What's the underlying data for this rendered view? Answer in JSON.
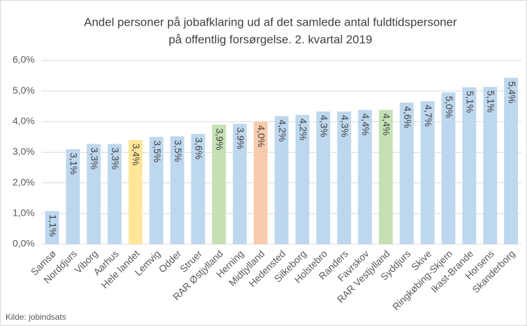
{
  "chart_data": {
    "type": "bar",
    "title": [
      "Andel personer på jobafklaring ud af det samlede antal fuldtidspersoner",
      "på offentlig forsørgelse. 2. kvartal 2019"
    ],
    "categories": [
      "Samsø",
      "Norddjurs",
      "Viborg",
      "Aarhus",
      "Hele landet",
      "Lemvig",
      "Odder",
      "Struer",
      "RAR Østjylland",
      "Herning",
      "Midtjylland",
      "Hedensted",
      "Silkeborg",
      "Holstebro",
      "Randers",
      "Favrskov",
      "RAR Vestjylland",
      "Syddjurs",
      "Skive",
      "Ringkøbing-Skjern",
      "Ikast-Brande",
      "Horsens",
      "Skanderborg"
    ],
    "values": [
      1.08,
      3.1,
      3.27,
      3.27,
      3.4,
      3.5,
      3.52,
      3.6,
      3.9,
      3.93,
      4.0,
      4.18,
      4.22,
      4.33,
      4.33,
      4.38,
      4.38,
      4.62,
      4.67,
      4.95,
      5.12,
      5.13,
      5.43
    ],
    "value_labels": [
      "1,1%",
      "3,1%",
      "3,3%",
      "3,3%",
      "3,4%",
      "3,5%",
      "3,5%",
      "3,6%",
      "3,9%",
      "3,9%",
      "4,0%",
      "4,2%",
      "4,2%",
      "4,3%",
      "4,3%",
      "4,4%",
      "4,4%",
      "4,6%",
      "4,7%",
      "5,0%",
      "5,1%",
      "5,1%",
      "5,4%"
    ],
    "colors": [
      "#bdd7ee",
      "#bdd7ee",
      "#bdd7ee",
      "#bdd7ee",
      "#ffe699",
      "#bdd7ee",
      "#bdd7ee",
      "#bdd7ee",
      "#c5e0b4",
      "#bdd7ee",
      "#f8cbad",
      "#bdd7ee",
      "#bdd7ee",
      "#bdd7ee",
      "#bdd7ee",
      "#bdd7ee",
      "#c5e0b4",
      "#bdd7ee",
      "#bdd7ee",
      "#bdd7ee",
      "#bdd7ee",
      "#bdd7ee",
      "#bdd7ee"
    ],
    "ylim": [
      0,
      6
    ],
    "yticks": [
      {
        "value": 0,
        "label": "0,0%"
      },
      {
        "value": 1,
        "label": "1,0%"
      },
      {
        "value": 2,
        "label": "2,0%"
      },
      {
        "value": 3,
        "label": "3,0%"
      },
      {
        "value": 4,
        "label": "4,0%"
      },
      {
        "value": 5,
        "label": "5,0%"
      },
      {
        "value": 6,
        "label": "6,0%"
      }
    ],
    "grid": true,
    "source": "Kilde: jobindsats"
  }
}
